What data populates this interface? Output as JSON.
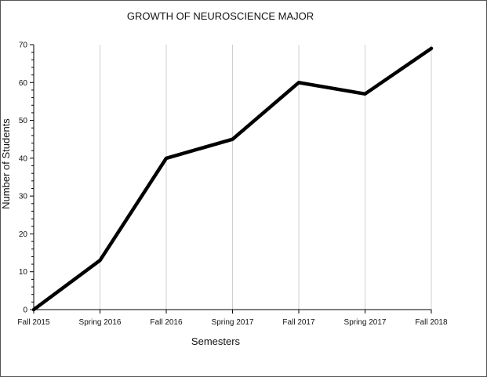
{
  "chart_data": {
    "type": "line",
    "title": "GROWTH OF NEUROSCIENCE MAJOR",
    "xlabel": "Semesters",
    "ylabel": "Number of Students",
    "categories": [
      "Fall 2015",
      "Spring 2016",
      "Fall 2016",
      "Spring 2017",
      "Fall 2017",
      "Spring 2017",
      "Fall 2018"
    ],
    "series": [
      {
        "values": [
          0,
          13,
          40,
          45,
          60,
          57,
          69
        ]
      }
    ],
    "ylim": [
      0,
      70
    ],
    "yticks": [
      "0",
      "10",
      "20",
      "30",
      "40",
      "50",
      "60",
      "70"
    ],
    "grid": "vertical",
    "line_color": "#000000"
  }
}
